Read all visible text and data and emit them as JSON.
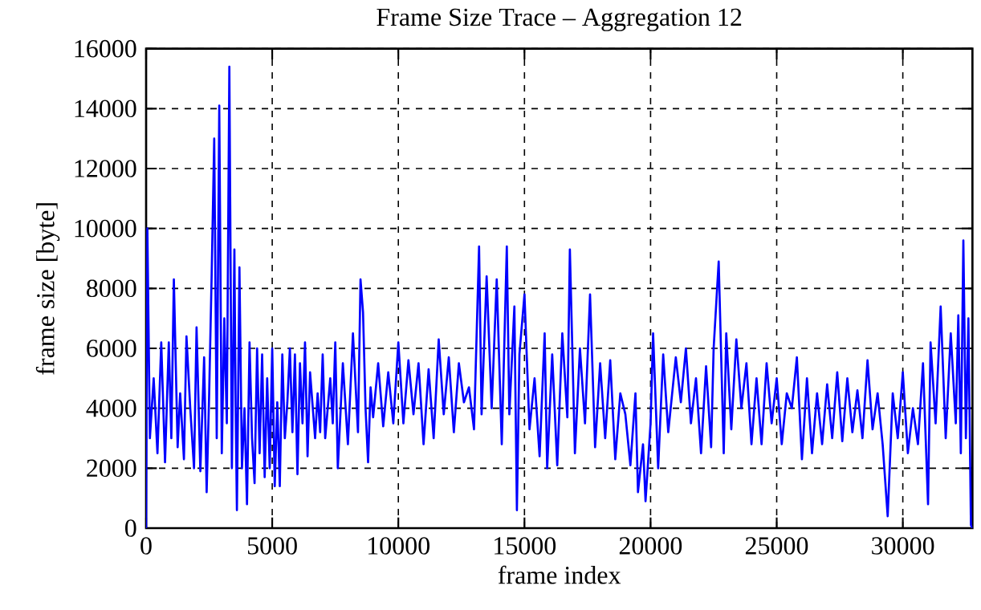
{
  "chart_data": {
    "type": "line",
    "title": "Frame Size Trace – Aggregation 12",
    "xlabel": "frame index",
    "ylabel": "frame size [byte]",
    "xlim": [
      0,
      32760
    ],
    "ylim": [
      0,
      16000
    ],
    "xticks": [
      0,
      5000,
      10000,
      15000,
      20000,
      25000,
      30000
    ],
    "yticks": [
      0,
      2000,
      4000,
      6000,
      8000,
      10000,
      12000,
      14000,
      16000
    ],
    "grid": true,
    "series": [
      {
        "color": "#0000ff",
        "x": [
          0,
          50,
          150,
          300,
          450,
          600,
          750,
          900,
          1000,
          1100,
          1250,
          1350,
          1500,
          1600,
          1750,
          1900,
          2000,
          2150,
          2300,
          2400,
          2500,
          2600,
          2700,
          2800,
          2900,
          3000,
          3100,
          3200,
          3300,
          3400,
          3500,
          3550,
          3600,
          3700,
          3800,
          3900,
          4000,
          4100,
          4200,
          4300,
          4400,
          4500,
          4600,
          4700,
          4800,
          4900,
          5000,
          5100,
          5200,
          5300,
          5400,
          5500,
          5600,
          5700,
          5800,
          5900,
          6000,
          6100,
          6200,
          6300,
          6400,
          6500,
          6700,
          6800,
          6900,
          7000,
          7100,
          7300,
          7400,
          7500,
          7600,
          7800,
          8000,
          8200,
          8400,
          8500,
          8600,
          8700,
          8800,
          8900,
          9000,
          9200,
          9400,
          9600,
          9800,
          10000,
          10200,
          10400,
          10600,
          10800,
          11000,
          11200,
          11400,
          11600,
          11800,
          12000,
          12200,
          12400,
          12600,
          12800,
          13000,
          13200,
          13300,
          13500,
          13700,
          13900,
          14100,
          14300,
          14400,
          14600,
          14700,
          14800,
          15000,
          15200,
          15400,
          15600,
          15800,
          15900,
          16100,
          16300,
          16500,
          16700,
          16800,
          17000,
          17200,
          17400,
          17600,
          17800,
          18000,
          18200,
          18400,
          18600,
          18800,
          19000,
          19200,
          19400,
          19500,
          19700,
          19800,
          20000,
          20100,
          20300,
          20500,
          20700,
          21000,
          21200,
          21400,
          21600,
          21800,
          22000,
          22200,
          22400,
          22500,
          22700,
          22900,
          23000,
          23200,
          23400,
          23600,
          23800,
          24000,
          24200,
          24400,
          24600,
          24800,
          25000,
          25200,
          25400,
          25600,
          25800,
          26000,
          26200,
          26400,
          26600,
          26800,
          27000,
          27200,
          27400,
          27600,
          27800,
          28000,
          28200,
          28400,
          28600,
          28800,
          29000,
          29200,
          29400,
          29600,
          29800,
          30000,
          30200,
          30400,
          30600,
          30800,
          31000,
          31100,
          31300,
          31500,
          31700,
          31900,
          32100,
          32200,
          32300,
          32400,
          32500,
          32600,
          32700,
          32760
        ],
        "values": [
          0,
          10000,
          3000,
          5000,
          2500,
          6200,
          2200,
          6200,
          3000,
          8300,
          2700,
          4500,
          2300,
          6400,
          4000,
          2000,
          6700,
          1900,
          5700,
          1200,
          4500,
          8500,
          13000,
          3000,
          14100,
          2500,
          7000,
          3500,
          15400,
          2000,
          9300,
          4000,
          600,
          8700,
          2000,
          4000,
          800,
          6200,
          3000,
          1500,
          6000,
          2500,
          5800,
          1700,
          5000,
          2000,
          6000,
          1400,
          4200,
          1400,
          5800,
          3000,
          4200,
          6000,
          3200,
          5800,
          1800,
          5500,
          3500,
          6200,
          2400,
          5200,
          3000,
          4500,
          3200,
          5800,
          3000,
          5000,
          3500,
          6200,
          2000,
          5500,
          2800,
          6500,
          3200,
          8300,
          7200,
          4000,
          2200,
          4700,
          3700,
          5500,
          3400,
          5200,
          3500,
          6200,
          3500,
          5600,
          3800,
          5500,
          2800,
          5300,
          3000,
          6300,
          3800,
          5700,
          3200,
          5500,
          4200,
          4700,
          3300,
          9400,
          3800,
          8400,
          4000,
          8300,
          2800,
          9400,
          3800,
          7400,
          600,
          5800,
          7800,
          3300,
          5000,
          2400,
          6500,
          2000,
          5800,
          2100,
          6500,
          3700,
          9300,
          2500,
          6000,
          3500,
          7800,
          2700,
          5500,
          3000,
          5600,
          2300,
          4500,
          3800,
          2100,
          4500,
          1200,
          2800,
          900,
          3500,
          6500,
          2000,
          5800,
          3200,
          5700,
          4200,
          6000,
          3500,
          5000,
          2500,
          5400,
          2700,
          6000,
          8900,
          2500,
          6500,
          3300,
          6300,
          4000,
          5500,
          2800,
          5000,
          2800,
          5500,
          3500,
          5000,
          2800,
          4500,
          4000,
          5700,
          2300,
          5000,
          2500,
          4500,
          2800,
          4800,
          3000,
          5200,
          2900,
          5000,
          3200,
          4600,
          3000,
          5600,
          3300,
          4500,
          2800,
          400,
          4500,
          3000,
          5200,
          2500,
          4000,
          2800,
          5500,
          800,
          6200,
          3500,
          7400,
          3000,
          6500,
          3500,
          7100,
          2500,
          9600,
          3000,
          7000,
          100,
          0
        ]
      }
    ]
  }
}
